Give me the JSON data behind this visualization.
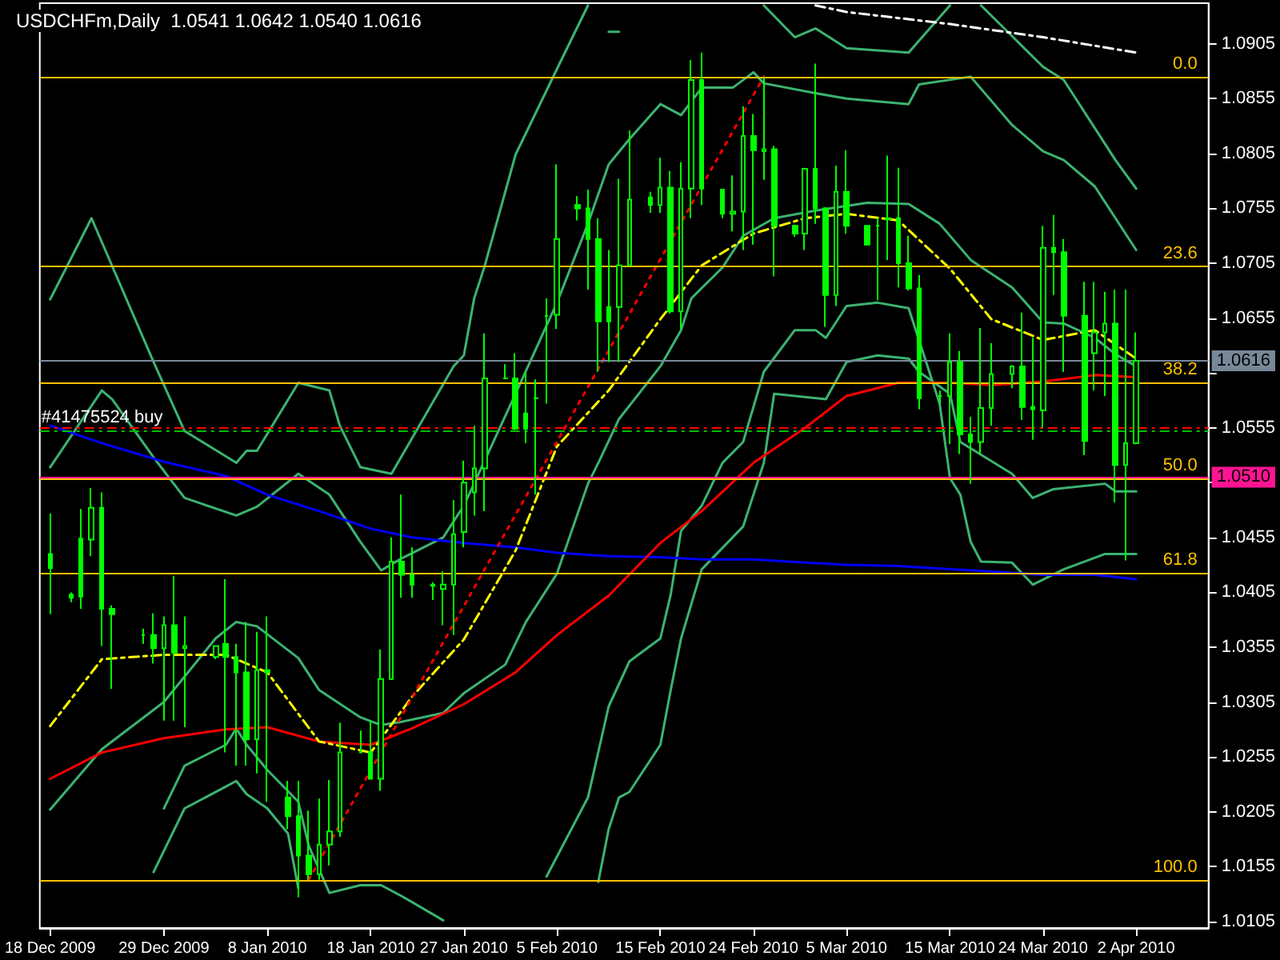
{
  "chart_data": {
    "type": "candlestick",
    "title": "USDCHFm,Daily  1.0541 1.0642 1.0540 1.0616",
    "marker": "none",
    "grid": false,
    "annotations": [
      {
        "text": "0.0",
        "y": 1.0875
      },
      {
        "text": "23.6",
        "y": 1.0702
      },
      {
        "text": "38.2",
        "y": 1.0596
      },
      {
        "text": "50.0",
        "y": 1.0509
      },
      {
        "text": "61.8",
        "y": 1.0423
      },
      {
        "text": "100.0",
        "y": 1.0143
      }
    ],
    "xlim": [
      "2009-12-17",
      "2010-04-09"
    ],
    "xticks": [
      {
        "value": "2009-12-18",
        "label": "18 Dec 2009"
      },
      {
        "value": "2009-12-29",
        "label": "29 Dec 2009"
      },
      {
        "value": "2010-01-08",
        "label": "8 Jan 2010"
      },
      {
        "value": "2010-01-18",
        "label": "18 Jan 2010"
      },
      {
        "value": "2010-01-27",
        "label": "27 Jan 2010"
      },
      {
        "value": "2010-02-05",
        "label": "5 Feb 2010"
      },
      {
        "value": "2010-02-15",
        "label": "15 Feb 2010"
      },
      {
        "value": "2010-02-24",
        "label": "24 Feb 2010"
      },
      {
        "value": "2010-03-05",
        "label": "5 Mar 2010"
      },
      {
        "value": "2010-03-15",
        "label": "15 Mar 2010"
      },
      {
        "value": "2010-03-24",
        "label": "24 Mar 2010"
      },
      {
        "value": "2010-04-02",
        "label": "2 Apr 2010"
      }
    ],
    "ylim": [
      1.0099,
      1.0942
    ],
    "yticks": [
      1.0105,
      1.0155,
      1.0205,
      1.0255,
      1.0305,
      1.0355,
      1.0405,
      1.0455,
      {
        "value": 1.0505,
        "label": null
      },
      1.0555,
      {
        "value": 1.0605,
        "label": null
      },
      1.0655,
      1.0705,
      1.0755,
      1.0805,
      1.0855,
      1.0905
    ],
    "ref_lines": [
      {
        "axis": "y",
        "value": 1.0875,
        "color": "#ffc000",
        "line_style": "solid"
      },
      {
        "axis": "y",
        "value": 1.0702,
        "color": "#ffc000",
        "line_style": "solid"
      },
      {
        "axis": "y",
        "value": 1.0596,
        "color": "#ffc000",
        "line_style": "solid"
      },
      {
        "axis": "y",
        "value": 1.0509,
        "color": "#ffc000",
        "line_style": "solid"
      },
      {
        "axis": "y",
        "value": 1.0423,
        "color": "#ffc000",
        "line_style": "solid"
      },
      {
        "axis": "y",
        "value": 1.0143,
        "color": "#ffc000",
        "line_style": "solid"
      },
      {
        "axis": "y",
        "value": 1.0616,
        "label": "1.0616",
        "color": "#778899",
        "line_style": "solid"
      },
      {
        "axis": "y",
        "value": 1.051,
        "label": "1.0510",
        "color": "#ff1493",
        "line_style": "solid"
      },
      {
        "axis": "y",
        "value": 1.0555,
        "label": "#41475524 buy",
        "color": "#ff0000",
        "line_style": "dashed"
      },
      {
        "axis": "y",
        "value": 1.0552,
        "color": "#00c000",
        "line_style": "dashed"
      }
    ],
    "series": [
      {
        "type": "line",
        "color": "#3cb371",
        "line_style": "solid",
        "x": [
          "2009-12-18",
          "2009-12-22",
          "2009-12-28",
          "2009-12-31",
          "2010-01-05",
          "2010-01-06",
          "2010-01-07",
          "2010-01-11",
          "2010-01-14",
          "2010-01-15",
          "2010-01-17",
          "2010-01-20",
          "2010-01-26",
          "2010-01-27",
          "2010-01-28",
          "2010-01-29",
          "2010-02-01",
          "2010-02-05",
          "2010-02-08",
          "2010-02-09",
          "2010-02-10",
          "2010-02-11",
          "2010-02-17",
          "2010-02-25",
          "2010-02-28",
          "2010-03-02",
          "2010-03-05",
          "2010-03-11",
          "2010-03-15",
          "2010-03-16",
          "2010-03-18",
          "2010-03-24",
          "2010-03-26",
          "2010-03-31",
          "2010-04-02"
        ],
        "values": [
          1.0672,
          1.0746,
          1.0615,
          1.0552,
          1.0523,
          1.0534,
          1.0534,
          1.0596,
          1.0589,
          1.0557,
          1.0519,
          1.0513,
          1.0611,
          1.0621,
          1.0673,
          1.0702,
          1.0804,
          1.0882,
          1.094,
          null,
          1.0916,
          1.0916,
          null,
          1.094,
          1.0911,
          1.0919,
          1.0901,
          1.0897,
          1.094,
          null,
          1.094,
          1.0884,
          1.0872,
          1.0799,
          1.0773
        ]
      },
      {
        "type": "line",
        "color": "#3cb371",
        "line_style": "solid",
        "x": [
          "2009-12-18",
          "2009-12-23",
          "2009-12-24",
          "2009-12-28",
          "2009-12-31",
          "2010-01-05",
          "2010-01-07",
          "2010-01-11",
          "2010-01-14",
          "2010-01-17",
          "2010-01-19",
          "2010-01-21",
          "2010-01-25",
          "2010-01-27",
          "2010-02-01",
          "2010-02-05",
          "2010-02-08",
          "2010-02-10",
          "2010-02-12",
          "2010-02-15",
          "2010-02-17",
          "2010-02-19",
          "2010-02-22",
          "2010-02-24",
          "2010-02-25",
          "2010-03-02",
          "2010-03-05",
          "2010-03-11",
          "2010-03-12",
          "2010-03-17",
          "2010-03-21",
          "2010-03-24",
          "2010-03-26",
          "2010-03-29",
          "2010-03-31",
          "2010-04-02"
        ],
        "values": [
          1.0519,
          1.0589,
          1.0581,
          1.0528,
          1.0491,
          1.0475,
          1.0483,
          1.0513,
          1.0494,
          1.0451,
          1.0425,
          1.0436,
          1.0455,
          1.0484,
          1.0586,
          1.0669,
          1.0741,
          1.0795,
          1.0818,
          1.085,
          1.084,
          1.0865,
          1.0865,
          1.0879,
          1.0869,
          1.086,
          1.0855,
          1.085,
          1.0868,
          1.0875,
          1.0831,
          1.0807,
          1.0799,
          1.0775,
          1.0746,
          1.0717
        ]
      },
      {
        "type": "line",
        "color": "#3cb371",
        "line_style": "solid",
        "x": [
          "2009-12-18",
          "2009-12-23",
          "2009-12-29",
          "2010-01-03",
          "2010-01-05",
          "2010-01-07",
          "2010-01-11",
          "2010-01-13",
          "2010-01-17",
          "2010-01-19",
          "2010-01-21",
          "2010-01-25",
          "2010-01-27",
          "2010-01-31",
          "2010-02-02",
          "2010-02-05",
          "2010-02-08",
          "2010-02-09",
          "2010-02-11",
          "2010-02-15",
          "2010-02-17",
          "2010-02-18",
          "2010-02-21",
          "2010-02-23",
          "2010-02-26",
          "2010-03-02",
          "2010-03-07",
          "2010-03-11",
          "2010-03-14",
          "2010-03-17",
          "2010-03-21",
          "2010-03-24",
          "2010-03-26",
          "2010-03-29",
          "2010-03-31",
          "2010-04-02"
        ],
        "values": [
          1.0207,
          1.0262,
          1.0305,
          1.0363,
          1.0378,
          1.0374,
          1.0345,
          1.0316,
          1.0291,
          1.0284,
          1.0287,
          1.0295,
          1.0313,
          1.0339,
          1.0378,
          1.0422,
          1.0504,
          1.0523,
          1.0563,
          1.0611,
          1.0644,
          1.0673,
          1.0701,
          1.073,
          1.0746,
          1.0753,
          1.076,
          1.0759,
          1.0741,
          1.0708,
          1.0683,
          1.0651,
          1.065,
          1.0637,
          1.0622,
          1.0611
        ]
      },
      {
        "type": "line",
        "color": "#3cb371",
        "line_style": "solid",
        "x": [
          "2010-02-04",
          "2010-02-08",
          "2010-02-10",
          "2010-02-12",
          "2010-02-15",
          "2010-02-16",
          "2010-02-17",
          "2010-02-19",
          "2010-02-21",
          "2010-02-23",
          "2010-02-25",
          "2010-02-28",
          "2010-03-02",
          "2010-03-03",
          "2010-03-05",
          "2010-03-08",
          "2010-03-11",
          "2010-03-12",
          "2010-03-14",
          "2010-03-15",
          "2010-03-16",
          "2010-03-17",
          "2010-03-18",
          "2010-03-21",
          "2010-03-23",
          "2010-03-26",
          "2010-03-30",
          "2010-04-02"
        ],
        "values": [
          1.0146,
          1.0218,
          1.0301,
          1.0342,
          1.0363,
          1.0403,
          1.0461,
          1.0484,
          1.0523,
          1.0542,
          1.0606,
          1.0644,
          1.0644,
          1.0637,
          1.0666,
          1.0669,
          1.0664,
          1.0635,
          1.0577,
          1.0509,
          1.0494,
          1.0451,
          1.0433,
          1.0432,
          1.0412,
          1.0426,
          1.044,
          1.044
        ]
      },
      {
        "type": "line",
        "color": "#3cb371",
        "line_style": "solid",
        "x": [
          "2010-02-09",
          "2010-02-10",
          "2010-02-11",
          "2010-02-12",
          "2010-02-15",
          "2010-02-16",
          "2010-02-17",
          "2010-02-19",
          "2010-02-23",
          "2010-02-25",
          "2010-02-26",
          "2010-03-03",
          "2010-03-05",
          "2010-03-08",
          "2010-03-11",
          "2010-03-12",
          "2010-03-15",
          "2010-03-16",
          "2010-03-21",
          "2010-03-23",
          "2010-03-25",
          "2010-03-30",
          "2010-03-31",
          "2010-04-02"
        ],
        "values": [
          1.0141,
          1.0189,
          1.0218,
          1.0223,
          1.0266,
          1.0316,
          1.0363,
          1.0426,
          1.0465,
          1.0523,
          1.0586,
          1.0581,
          1.0615,
          1.0621,
          1.0618,
          1.0606,
          1.0586,
          1.0542,
          1.0513,
          1.0491,
          1.0499,
          1.0504,
          1.0497,
          1.0497
        ]
      },
      {
        "type": "line",
        "color": "#3cb371",
        "line_style": "solid",
        "x": [
          "2009-12-28",
          "2009-12-31",
          "2010-01-04",
          "2010-01-05",
          "2010-01-06",
          "2010-01-08",
          "2010-01-10",
          "2010-01-11"
        ],
        "values": [
          1.015,
          1.0208,
          1.0228,
          1.0233,
          1.0221,
          1.0208,
          1.0185,
          1.0135
        ]
      },
      {
        "type": "line",
        "color": "#3cb371",
        "line_style": "solid",
        "x": [
          "2009-12-29",
          "2009-12-31",
          "2010-01-04",
          "2010-01-05",
          "2010-01-06",
          "2010-01-08",
          "2010-01-11",
          "2010-01-12",
          "2010-01-14",
          "2010-01-17",
          "2010-01-19",
          "2010-01-21",
          "2010-01-25"
        ],
        "values": [
          1.0208,
          1.0247,
          1.0266,
          1.0281,
          1.0266,
          1.0243,
          1.0214,
          1.0174,
          1.0131,
          1.0138,
          1.0138,
          1.0128,
          1.0106
        ]
      },
      {
        "type": "line",
        "color": "#ffffff",
        "line_style": "dashed",
        "x": [
          "2010-03-02",
          "2010-03-05",
          "2010-03-15",
          "2010-03-24",
          "2010-04-02"
        ],
        "values": [
          1.094,
          1.0934,
          1.0923,
          1.0911,
          1.0897
        ]
      },
      {
        "type": "line",
        "color": "#0000ff",
        "line_style": "solid",
        "x": [
          "2009-12-18",
          "2009-12-23",
          "2009-12-29",
          "2010-01-04",
          "2010-01-08",
          "2010-01-13",
          "2010-01-18",
          "2010-01-22",
          "2010-01-27",
          "2010-02-01",
          "2010-02-05",
          "2010-02-10",
          "2010-02-15",
          "2010-02-19",
          "2010-02-24",
          "2010-03-01",
          "2010-03-05",
          "2010-03-10",
          "2010-03-15",
          "2010-03-19",
          "2010-03-24",
          "2010-03-29",
          "2010-04-02"
        ],
        "values": [
          1.0557,
          1.0541,
          1.0524,
          1.0511,
          1.0494,
          1.0479,
          1.0463,
          1.0455,
          1.045,
          1.0446,
          1.0441,
          1.0438,
          1.0437,
          1.0435,
          1.0435,
          1.0432,
          1.043,
          1.0429,
          1.0426,
          1.0424,
          1.0421,
          1.0421,
          1.0417
        ]
      },
      {
        "type": "line",
        "color": "#ff0000",
        "line_style": "solid",
        "x": [
          "2009-12-18",
          "2009-12-23",
          "2009-12-29",
          "2010-01-04",
          "2010-01-08",
          "2010-01-13",
          "2010-01-18",
          "2010-01-22",
          "2010-01-27",
          "2010-02-01",
          "2010-02-05",
          "2010-02-10",
          "2010-02-15",
          "2010-02-19",
          "2010-02-24",
          "2010-03-01",
          "2010-03-05",
          "2010-03-10",
          "2010-03-15",
          "2010-03-19",
          "2010-03-24",
          "2010-03-29",
          "2010-04-02"
        ],
        "values": [
          1.0235,
          1.0259,
          1.0272,
          1.028,
          1.0282,
          1.0269,
          1.0266,
          1.0281,
          1.0303,
          1.0332,
          1.0366,
          1.0402,
          1.045,
          1.0479,
          1.0523,
          1.0555,
          1.0584,
          1.0596,
          1.0596,
          1.0594,
          1.0597,
          1.0603,
          1.0601
        ]
      },
      {
        "type": "line",
        "color": "#ffff00",
        "line_style": "dashed",
        "x": [
          "2009-12-18",
          "2009-12-23",
          "2009-12-29",
          "2010-01-04",
          "2010-01-08",
          "2010-01-13",
          "2010-01-18",
          "2010-01-22",
          "2010-01-27",
          "2010-02-01",
          "2010-02-05",
          "2010-02-10",
          "2010-02-15",
          "2010-02-19",
          "2010-02-24",
          "2010-03-01",
          "2010-03-05",
          "2010-03-10",
          "2010-03-15",
          "2010-03-19",
          "2010-03-24",
          "2010-03-29",
          "2010-04-02"
        ],
        "values": [
          1.0283,
          1.0344,
          1.0348,
          1.0348,
          1.0332,
          1.0269,
          1.0259,
          1.031,
          1.0362,
          1.0443,
          1.0538,
          1.0589,
          1.0654,
          1.0703,
          1.0732,
          1.0746,
          1.075,
          1.0744,
          1.07,
          1.0654,
          1.0635,
          1.0644,
          1.0618
        ]
      },
      {
        "type": "line",
        "color": "#ff0000",
        "line_style": "dotted",
        "x": [
          "2010-01-12",
          "2010-02-25"
        ],
        "values": [
          1.0143,
          1.0875
        ]
      },
      {
        "color": "#00ff00",
        "x": [
          "2009-12-18",
          "2009-12-20",
          "2009-12-21",
          "2009-12-22",
          "2009-12-23",
          "2009-12-24",
          "2009-12-27",
          "2009-12-28",
          "2009-12-29",
          "2009-12-30",
          "2009-12-31",
          "2010-01-03",
          "2010-01-04",
          "2010-01-05",
          "2010-01-06",
          "2010-01-07",
          "2010-01-08",
          "2010-01-10",
          "2010-01-11",
          "2010-01-12",
          "2010-01-13",
          "2010-01-14",
          "2010-01-15",
          "2010-01-17",
          "2010-01-18",
          "2010-01-19",
          "2010-01-20",
          "2010-01-21",
          "2010-01-22",
          "2010-01-24",
          "2010-01-25",
          "2010-01-26",
          "2010-01-27",
          "2010-01-28",
          "2010-01-29",
          "2010-01-31",
          "2010-02-01",
          "2010-02-02",
          "2010-02-03",
          "2010-02-04",
          "2010-02-05",
          "2010-02-07",
          "2010-02-08",
          "2010-02-09",
          "2010-02-10",
          "2010-02-11",
          "2010-02-12",
          "2010-02-14",
          "2010-02-15",
          "2010-02-16",
          "2010-02-17",
          "2010-02-18",
          "2010-02-19",
          "2010-02-21",
          "2010-02-22",
          "2010-02-23",
          "2010-02-24",
          "2010-02-25",
          "2010-02-26",
          "2010-02-28",
          "2010-03-01",
          "2010-03-02",
          "2010-03-03",
          "2010-03-04",
          "2010-03-05",
          "2010-03-07",
          "2010-03-08",
          "2010-03-09",
          "2010-03-10",
          "2010-03-11",
          "2010-03-12",
          "2010-03-14",
          "2010-03-15",
          "2010-03-16",
          "2010-03-17",
          "2010-03-18",
          "2010-03-19",
          "2010-03-21",
          "2010-03-22",
          "2010-03-23",
          "2010-03-24",
          "2010-03-25",
          "2010-03-26",
          "2010-03-28",
          "2010-03-29",
          "2010-03-30",
          "2010-03-31",
          "2010-04-01",
          "2010-04-02"
        ],
        "ohlc": [
          [
            1.044,
            1.0477,
            1.0385,
            1.0427
          ],
          [
            1.0403,
            1.0405,
            1.0396,
            1.04
          ],
          [
            1.0454,
            1.0481,
            1.039,
            1.0401
          ],
          [
            1.0453,
            1.05,
            1.0438,
            1.0482
          ],
          [
            1.0482,
            1.0496,
            1.0356,
            1.039
          ],
          [
            1.039,
            1.0393,
            1.0317,
            1.0385
          ],
          [
            1.0366,
            1.0372,
            1.0358,
            1.0366
          ],
          [
            1.0366,
            1.0386,
            1.034,
            1.0354
          ],
          [
            1.0354,
            1.0383,
            1.0288,
            1.0375
          ],
          [
            1.0375,
            1.042,
            1.0288,
            1.035
          ],
          [
            1.0354,
            1.0383,
            1.0282,
            1.0356
          ],
          [
            1.0346,
            1.0356,
            1.0344,
            1.0356
          ],
          [
            1.0358,
            1.0417,
            1.0259,
            1.0346
          ],
          [
            1.0346,
            1.0358,
            1.0247,
            1.0332
          ],
          [
            1.0332,
            1.0378,
            1.0247,
            1.0271
          ],
          [
            1.0271,
            1.0369,
            1.024,
            1.0334
          ],
          [
            1.0334,
            1.0383,
            1.0214,
            1.0332
          ],
          [
            1.0218,
            1.0233,
            1.0189,
            1.0201
          ],
          [
            1.0201,
            1.0233,
            1.0127,
            1.0165
          ],
          [
            1.0165,
            1.0206,
            1.0143,
            1.0148
          ],
          [
            1.0148,
            1.0217,
            1.0143,
            1.0175
          ],
          [
            1.0175,
            1.0234,
            1.0156,
            1.0187
          ],
          [
            1.0187,
            1.0286,
            1.0182,
            1.0259
          ],
          [
            1.0259,
            1.0279,
            1.0259,
            1.0259
          ],
          [
            1.0259,
            1.0288,
            1.0235,
            1.0235
          ],
          [
            1.0235,
            1.0353,
            1.0224,
            1.0326
          ],
          [
            1.0326,
            1.0455,
            1.0325,
            1.0433
          ],
          [
            1.0433,
            1.0494,
            1.04,
            1.0421
          ],
          [
            1.0421,
            1.0446,
            1.04,
            1.0412
          ],
          [
            1.0412,
            1.0414,
            1.0398,
            1.0411
          ],
          [
            1.0408,
            1.0424,
            1.0375,
            1.0412
          ],
          [
            1.0412,
            1.0489,
            1.0366,
            1.0458
          ],
          [
            1.046,
            1.0525,
            1.0446,
            1.0505
          ],
          [
            1.0496,
            1.0557,
            1.0475,
            1.0518
          ],
          [
            1.0518,
            1.0641,
            1.0479,
            1.06
          ],
          [
            1.06,
            1.0613,
            1.0599,
            1.06
          ],
          [
            1.06,
            1.0623,
            1.0553,
            1.0554
          ],
          [
            1.0568,
            1.0606,
            1.0541,
            1.0554
          ],
          [
            1.0582,
            1.0599,
            1.0494,
            1.0582
          ],
          [
            1.0657,
            1.0673,
            1.0577,
            1.0657
          ],
          [
            1.0658,
            1.0795,
            1.0645,
            1.0727
          ],
          [
            1.0758,
            1.0766,
            1.0744,
            1.0755
          ],
          [
            1.0755,
            1.0772,
            1.0681,
            1.0727
          ],
          [
            1.0727,
            1.0746,
            1.0606,
            1.0652
          ],
          [
            1.0665,
            1.0717,
            1.0615,
            1.0652
          ],
          [
            1.0665,
            1.0782,
            1.0615,
            1.0703
          ],
          [
            1.0703,
            1.0826,
            1.0703,
            1.0763
          ],
          [
            1.0765,
            1.077,
            1.0751,
            1.0758
          ],
          [
            1.0758,
            1.0801,
            1.0751,
            1.0774
          ],
          [
            1.0774,
            1.0789,
            1.0659,
            1.0661
          ],
          [
            1.0661,
            1.0797,
            1.0645,
            1.0773
          ],
          [
            1.0773,
            1.089,
            1.0746,
            1.0872
          ],
          [
            1.0872,
            1.0897,
            1.0758,
            1.0773
          ],
          [
            1.0772,
            1.0772,
            1.0746,
            1.075
          ],
          [
            1.075,
            1.0785,
            1.0734,
            1.0752
          ],
          [
            1.0752,
            1.0848,
            1.0717,
            1.0821
          ],
          [
            1.0821,
            1.0841,
            1.0722,
            1.0808
          ],
          [
            1.0807,
            1.0875,
            1.0781,
            1.0809
          ],
          [
            1.0809,
            1.0812,
            1.0693,
            1.0739
          ],
          [
            1.0739,
            1.074,
            1.0729,
            1.0732
          ],
          [
            1.0732,
            1.0792,
            1.0717,
            1.0791
          ],
          [
            1.0791,
            1.0887,
            1.0741,
            1.0755
          ],
          [
            1.0755,
            1.0756,
            1.0647,
            1.0676
          ],
          [
            1.0676,
            1.0794,
            1.0666,
            1.077
          ],
          [
            1.077,
            1.0808,
            1.0732,
            1.0739
          ],
          [
            1.0739,
            1.0739,
            1.0721,
            1.0722
          ],
          [
            1.0739,
            1.0746,
            1.0671,
            1.0739
          ],
          [
            1.0746,
            1.0803,
            1.0708,
            1.0745
          ],
          [
            1.0746,
            1.0792,
            1.0683,
            1.0705
          ],
          [
            1.0705,
            1.073,
            1.068,
            1.0682
          ],
          [
            1.0682,
            1.0694,
            1.0572,
            1.0582
          ],
          [
            1.0584,
            1.0589,
            1.0577,
            1.0584
          ],
          [
            1.0584,
            1.0641,
            1.054,
            1.0615
          ],
          [
            1.0615,
            1.0625,
            1.0531,
            1.0549
          ],
          [
            1.0549,
            1.0565,
            1.0504,
            1.0542
          ],
          [
            1.0542,
            1.0646,
            1.0531,
            1.0573
          ],
          [
            1.0573,
            1.0632,
            1.0557,
            1.0604
          ],
          [
            1.0604,
            1.0612,
            1.0591,
            1.0611
          ],
          [
            1.0611,
            1.066,
            1.0562,
            1.0574
          ],
          [
            1.0574,
            1.0637,
            1.0544,
            1.0572
          ],
          [
            1.0571,
            1.0739,
            1.0555,
            1.0719
          ],
          [
            1.0719,
            1.0749,
            1.0676,
            1.0715
          ],
          [
            1.0715,
            1.0727,
            1.0606,
            1.0657
          ],
          [
            1.0657,
            1.0688,
            1.053,
            1.0543
          ],
          [
            1.0623,
            1.0688,
            1.0589,
            1.0642
          ],
          [
            1.0642,
            1.0679,
            1.0584,
            1.065
          ],
          [
            1.065,
            1.0681,
            1.0487,
            1.0521
          ],
          [
            1.0521,
            1.0681,
            1.0434,
            1.0541
          ],
          [
            1.0541,
            1.0642,
            1.054,
            1.0616
          ]
        ]
      }
    ]
  }
}
